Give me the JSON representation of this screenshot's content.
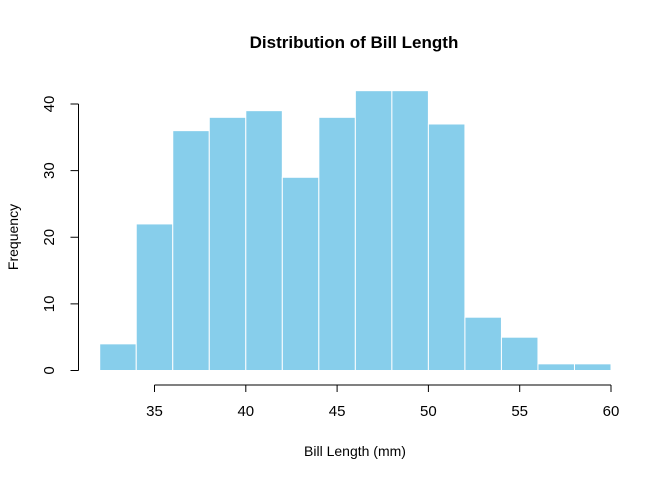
{
  "chart_data": {
    "type": "bar",
    "subtype": "histogram",
    "title": "Distribution of Bill Length",
    "xlabel": "Bill Length (mm)",
    "ylabel": "Frequency",
    "bin_width": 2,
    "bins": [
      {
        "start": 32,
        "end": 34,
        "count": 4
      },
      {
        "start": 34,
        "end": 36,
        "count": 22
      },
      {
        "start": 36,
        "end": 38,
        "count": 36
      },
      {
        "start": 38,
        "end": 40,
        "count": 38
      },
      {
        "start": 40,
        "end": 42,
        "count": 39
      },
      {
        "start": 42,
        "end": 44,
        "count": 29
      },
      {
        "start": 44,
        "end": 46,
        "count": 38
      },
      {
        "start": 46,
        "end": 48,
        "count": 42
      },
      {
        "start": 48,
        "end": 50,
        "count": 42
      },
      {
        "start": 50,
        "end": 52,
        "count": 37
      },
      {
        "start": 52,
        "end": 54,
        "count": 8
      },
      {
        "start": 54,
        "end": 56,
        "count": 5
      },
      {
        "start": 56,
        "end": 58,
        "count": 1
      },
      {
        "start": 58,
        "end": 60,
        "count": 1
      }
    ],
    "categories": [
      "32-34",
      "34-36",
      "36-38",
      "38-40",
      "40-42",
      "42-44",
      "44-46",
      "46-48",
      "48-50",
      "50-52",
      "52-54",
      "54-56",
      "56-58",
      "58-60"
    ],
    "values": [
      4,
      22,
      36,
      38,
      39,
      29,
      38,
      42,
      42,
      37,
      8,
      5,
      1,
      1
    ],
    "x_ticks": [
      35,
      40,
      45,
      50,
      55,
      60
    ],
    "y_ticks": [
      0,
      10,
      20,
      30,
      40
    ],
    "xlim": [
      32,
      60
    ],
    "ylim": [
      0,
      42
    ],
    "grid": false,
    "legend": null,
    "colors": {
      "bar_fill": "#87CEEB",
      "bar_border": "#ffffff",
      "axis": "#000000",
      "background": "#ffffff"
    }
  }
}
